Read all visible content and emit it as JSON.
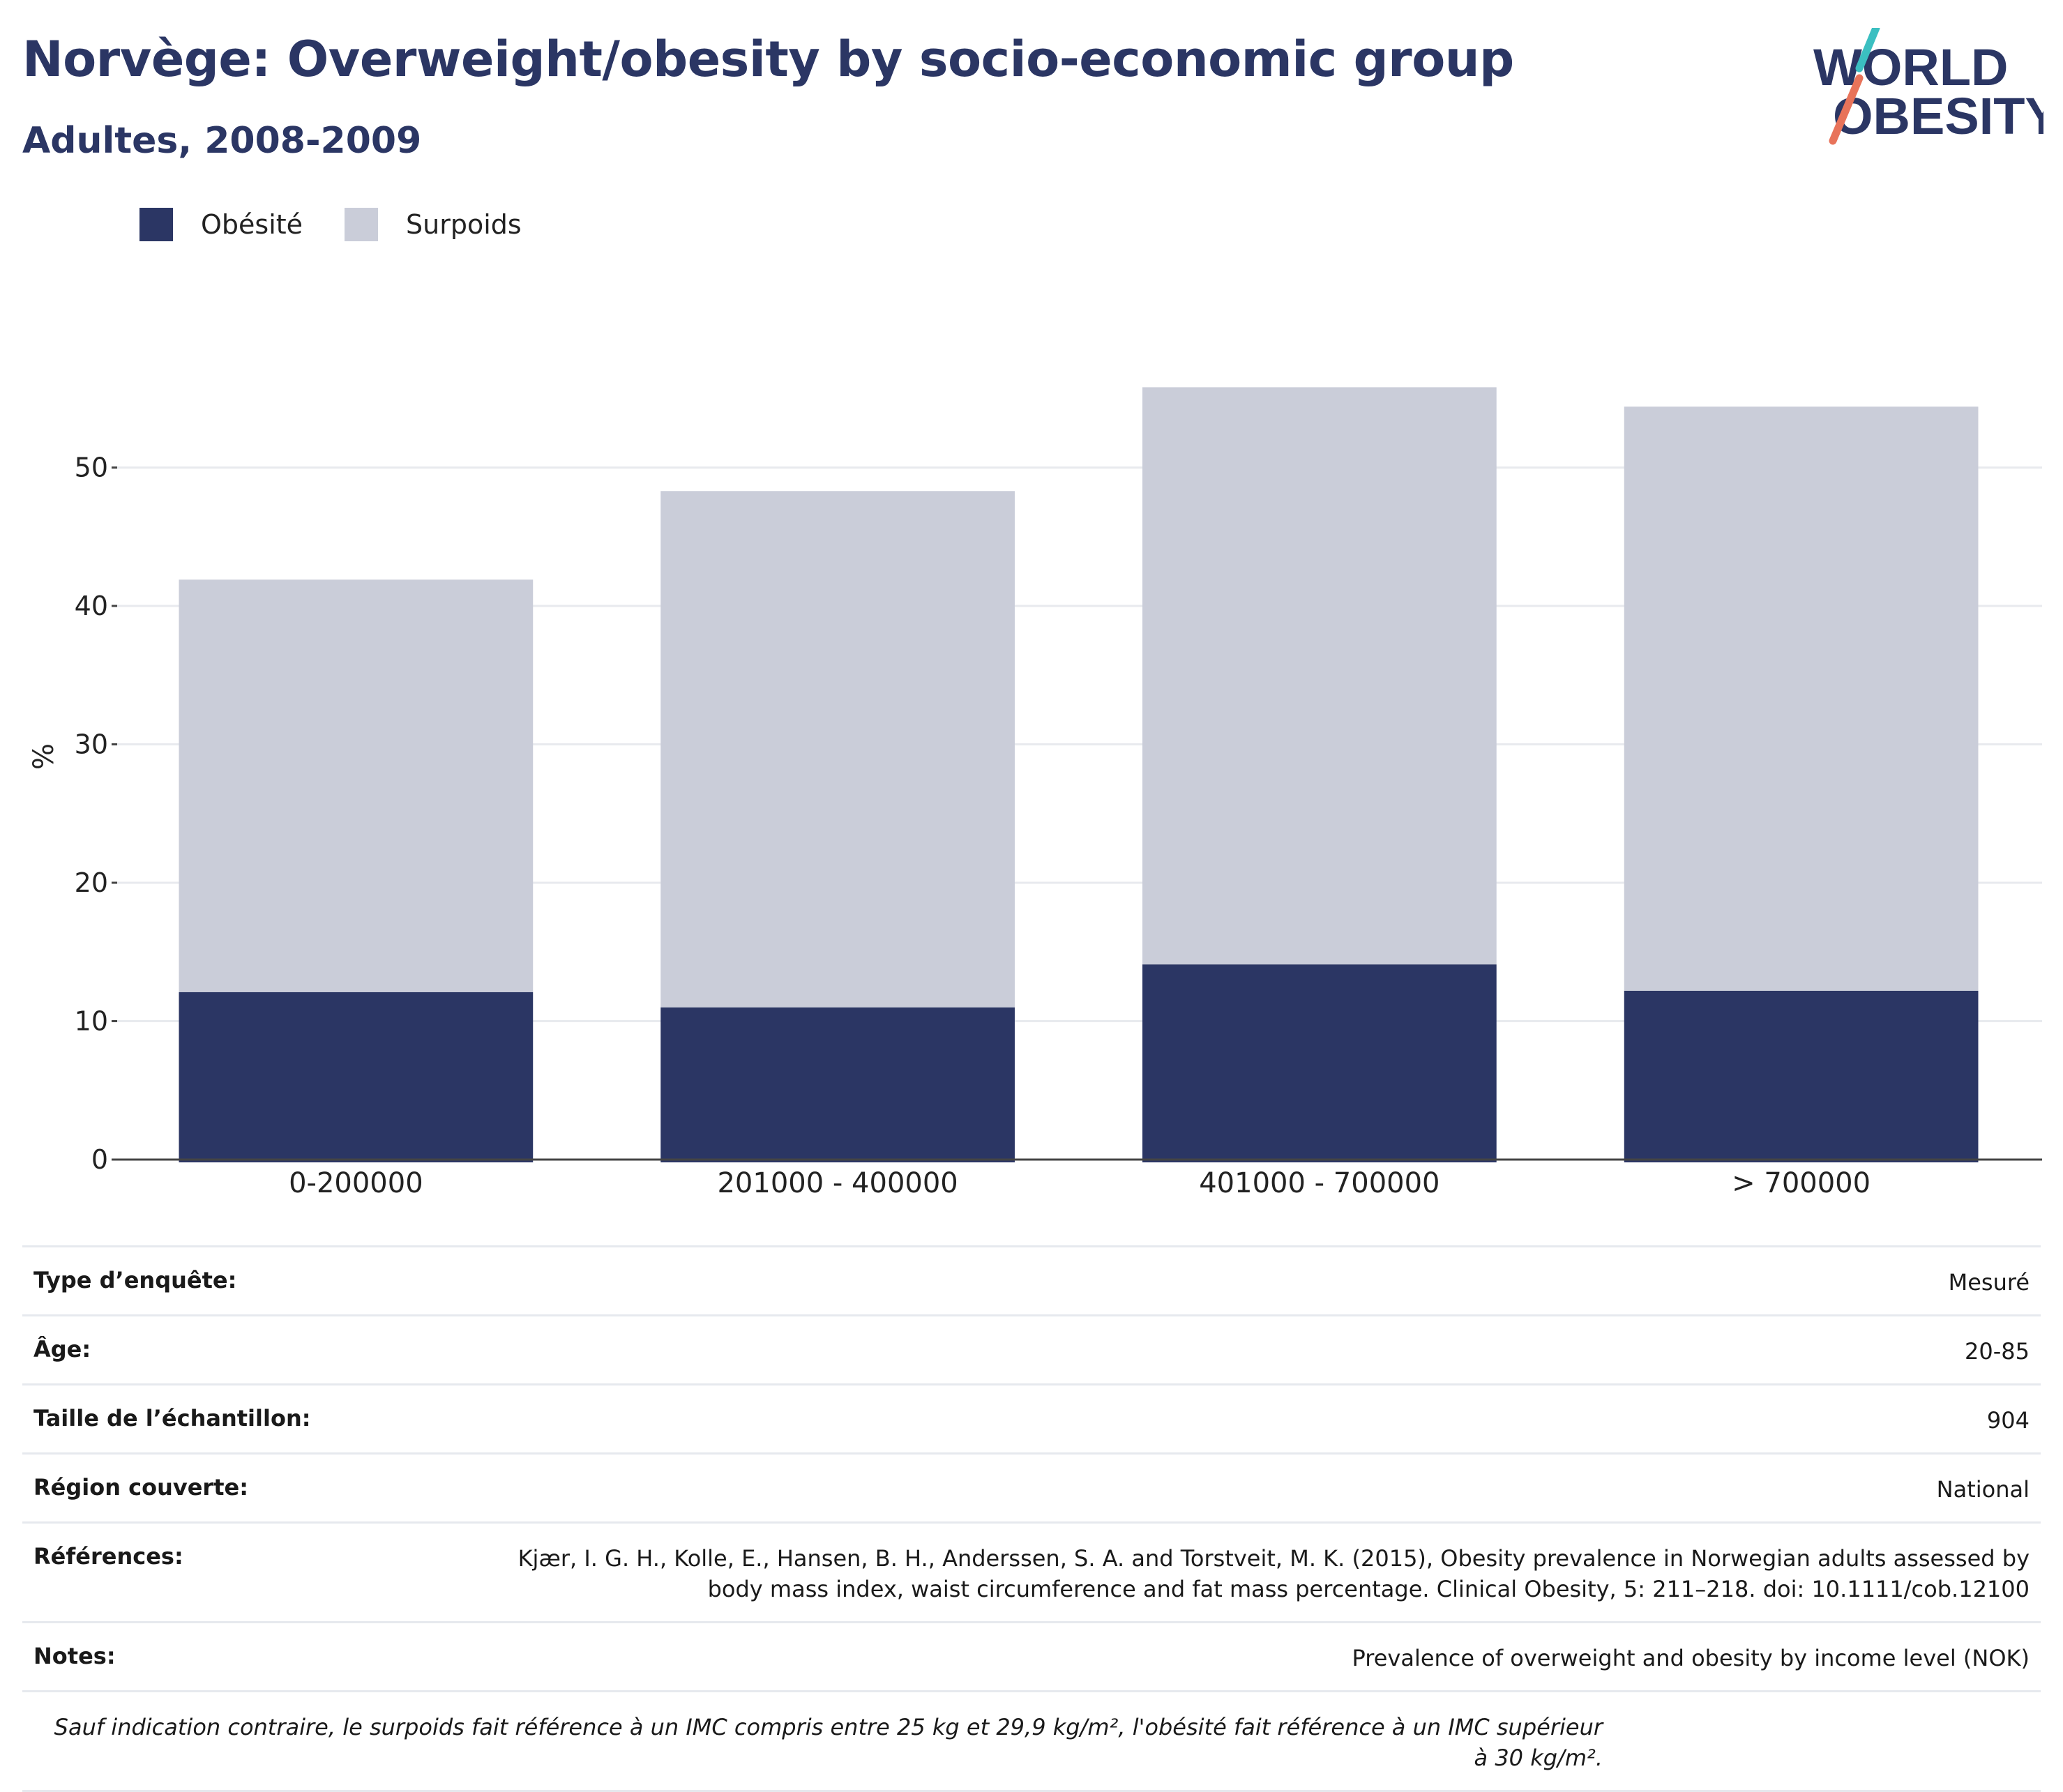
{
  "header": {
    "title": "Norvège: Overweight/obesity by socio-economic group",
    "subtitle": "Adultes, 2008-2009"
  },
  "logo": {
    "line1": "WORLD",
    "line2": "OBESITY"
  },
  "legend": [
    {
      "label": "Obésité",
      "color": "#2b3664"
    },
    {
      "label": "Surpoids",
      "color": "#cacdd9"
    }
  ],
  "chart_data": {
    "type": "bar",
    "stacked": true,
    "title": "Norvège: Overweight/obesity by socio-economic group",
    "subtitle": "Adultes, 2008-2009",
    "ylabel": "%",
    "xlabel": "",
    "ylim": [
      0,
      58
    ],
    "yticks": [
      0,
      10,
      20,
      30,
      40,
      50
    ],
    "grid": true,
    "legend_position": "top-left",
    "categories": [
      "0-200000",
      "201000 - 400000",
      "401000 - 700000",
      "> 700000"
    ],
    "series": [
      {
        "name": "Obésité",
        "color": "#2b3664",
        "values": [
          12.1,
          11.0,
          14.1,
          12.2
        ]
      },
      {
        "name": "Surpoids",
        "color": "#cacdd9",
        "values": [
          29.8,
          37.3,
          41.7,
          42.2
        ]
      }
    ]
  },
  "info": {
    "survey_type_label": "Type d’enquête:",
    "survey_type_value": "Mesuré",
    "age_label": "Âge:",
    "age_value": "20-85",
    "sample_label": "Taille de l’échantillon:",
    "sample_value": "904",
    "region_label": "Région couverte:",
    "region_value": "National",
    "references_label": "Références:",
    "references_value_1": "Kjær, I. G. H., Kolle, E., Hansen, B. H., Anderssen, S. A. and Torstveit, M. K. (2015), Obesity prevalence in Norwegian adults assessed by",
    "references_value_2": "body mass index, waist circumference and fat mass percentage. Clinical Obesity, 5: 211–218. doi: 10.1111/cob.12100",
    "notes_label": "Notes:",
    "notes_value": "Prevalence of overweight and obesity by income level (NOK)",
    "footnote": "Sauf indication contraire, le surpoids fait référence à un IMC compris entre 25 kg et 29,9 kg/m², l'obésité fait référence à un IMC supérieur à 30 kg/m²."
  }
}
